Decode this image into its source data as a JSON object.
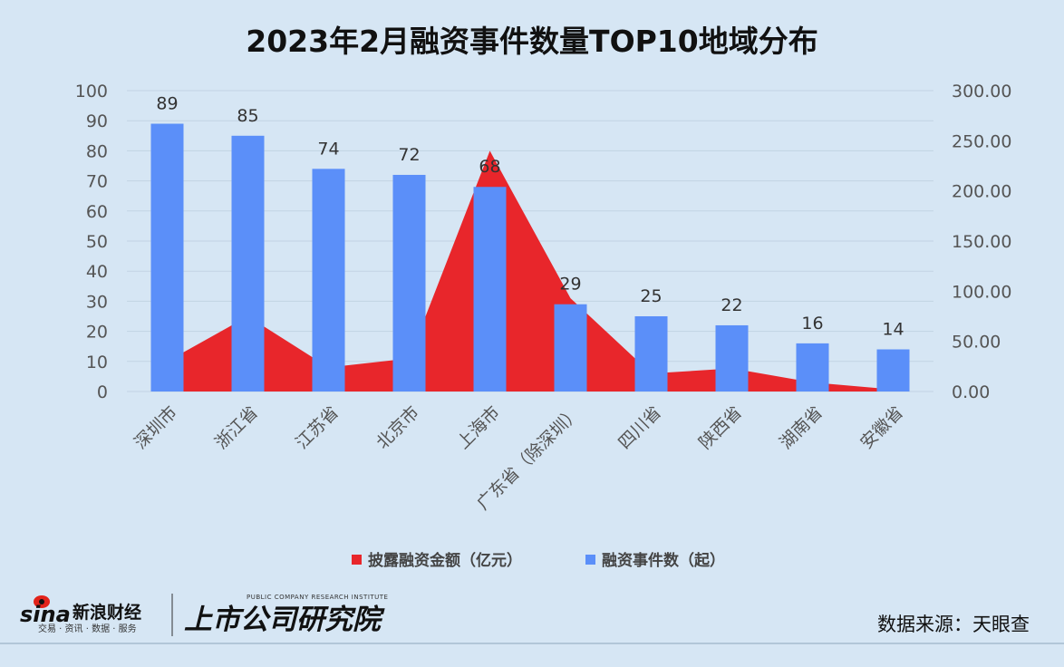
{
  "chart_data": {
    "type": "bar",
    "title": "2023年2月融资事件数量TOP10地域分布",
    "categories": [
      "深圳市",
      "浙江省",
      "江苏省",
      "北京市",
      "上海市",
      "广东省（除深圳）",
      "四川省",
      "陕西省",
      "湖南省",
      "安徽省"
    ],
    "series": [
      {
        "name": "披露融资金额（亿元）",
        "type": "area",
        "axis": "right",
        "color": "#e8262b",
        "values": [
          30,
          75,
          24,
          33,
          240,
          93,
          18,
          23,
          9,
          2
        ]
      },
      {
        "name": "融资事件数（起）",
        "type": "bar",
        "axis": "left",
        "color": "#5b8ff9",
        "values": [
          89,
          85,
          74,
          72,
          68,
          29,
          25,
          22,
          16,
          14
        ]
      }
    ],
    "y_left": {
      "min": 0,
      "max": 100,
      "ticks": [
        "0",
        "10",
        "20",
        "30",
        "40",
        "50",
        "60",
        "70",
        "80",
        "90",
        "100"
      ]
    },
    "y_right": {
      "min": 0,
      "max": 300,
      "ticks": [
        "0.00",
        "50.00",
        "100.00",
        "150.00",
        "200.00",
        "250.00",
        "300.00"
      ]
    },
    "grid": true,
    "legend_position": "bottom"
  },
  "footer": {
    "source": "数据来源：天眼查",
    "logo_sina": "sina",
    "logo_sina_cn": "新浪财经",
    "logo_sina_sub": "交易 · 资讯 · 数据 · 服务",
    "logo_research": "上市公司研究院",
    "logo_research_en": "PUBLIC COMPANY RESEARCH INSTITUTE"
  }
}
